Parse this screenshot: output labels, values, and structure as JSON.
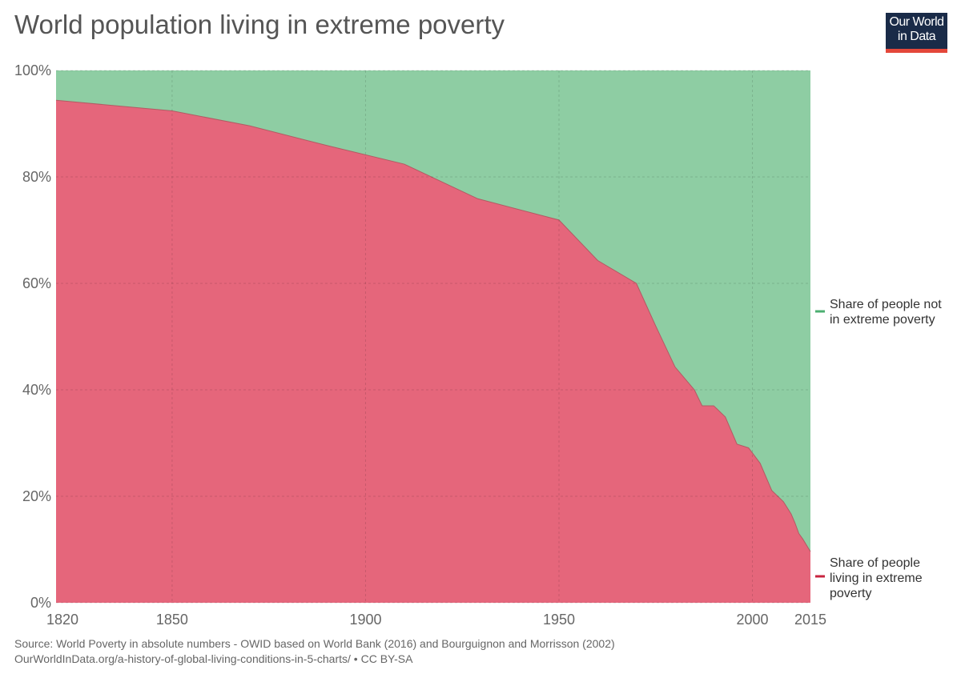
{
  "header": {
    "title": "World population living in extreme poverty",
    "logo": {
      "line1": "Our World",
      "line2": "in Data"
    }
  },
  "colors": {
    "poverty": "#e5667b",
    "not_poverty": "#8ecda3",
    "poverty_legend": "#c8243f",
    "not_poverty_legend": "#4caf71"
  },
  "chart_data": {
    "type": "area",
    "stacked": true,
    "x": [
      1820,
      1850,
      1870,
      1890,
      1910,
      1929,
      1950,
      1960,
      1970,
      1975,
      1980,
      1985,
      1987,
      1990,
      1993,
      1996,
      1999,
      2002,
      2005,
      2008,
      2010,
      2011,
      2012,
      2013,
      2015
    ],
    "series": [
      {
        "name": "Share of people living in extreme poverty",
        "name_lines": [
          "Share of people",
          "living in extreme",
          "poverty"
        ],
        "color_key": "poverty",
        "values": [
          94.4,
          92.4,
          89.6,
          85.9,
          82.4,
          75.9,
          71.9,
          64.3,
          60.0,
          52.0,
          44.3,
          40.0,
          37.0,
          37.0,
          34.9,
          29.8,
          29.1,
          26.2,
          21.1,
          19.0,
          16.7,
          15.0,
          13.0,
          12.0,
          9.6
        ]
      },
      {
        "name": "Share of people not in extreme poverty",
        "name_lines": [
          "Share of people not",
          "in extreme poverty"
        ],
        "color_key": "not_poverty",
        "values": [
          5.6,
          7.6,
          10.4,
          14.1,
          17.6,
          24.1,
          28.1,
          35.7,
          40.0,
          48.0,
          55.7,
          60.0,
          63.0,
          63.0,
          65.1,
          70.2,
          70.9,
          73.8,
          78.9,
          81.0,
          83.3,
          85.0,
          87.0,
          88.0,
          90.4
        ]
      }
    ],
    "xlim": [
      1820,
      2015
    ],
    "ylim": [
      0,
      100
    ],
    "x_ticks": [
      1820,
      1850,
      1900,
      1950,
      2000,
      2015
    ],
    "y_ticks": [
      0,
      20,
      40,
      60,
      80,
      100
    ],
    "y_tick_labels": [
      "0%",
      "20%",
      "40%",
      "60%",
      "80%",
      "100%"
    ],
    "grid": true,
    "legend_position": "right"
  },
  "footer": {
    "source": "Source: World Poverty in absolute numbers - OWID based on World Bank (2016) and Bourguignon and Morrisson (2002)",
    "url": "OurWorldInData.org/a-history-of-global-living-conditions-in-5-charts/ • CC BY-SA"
  }
}
